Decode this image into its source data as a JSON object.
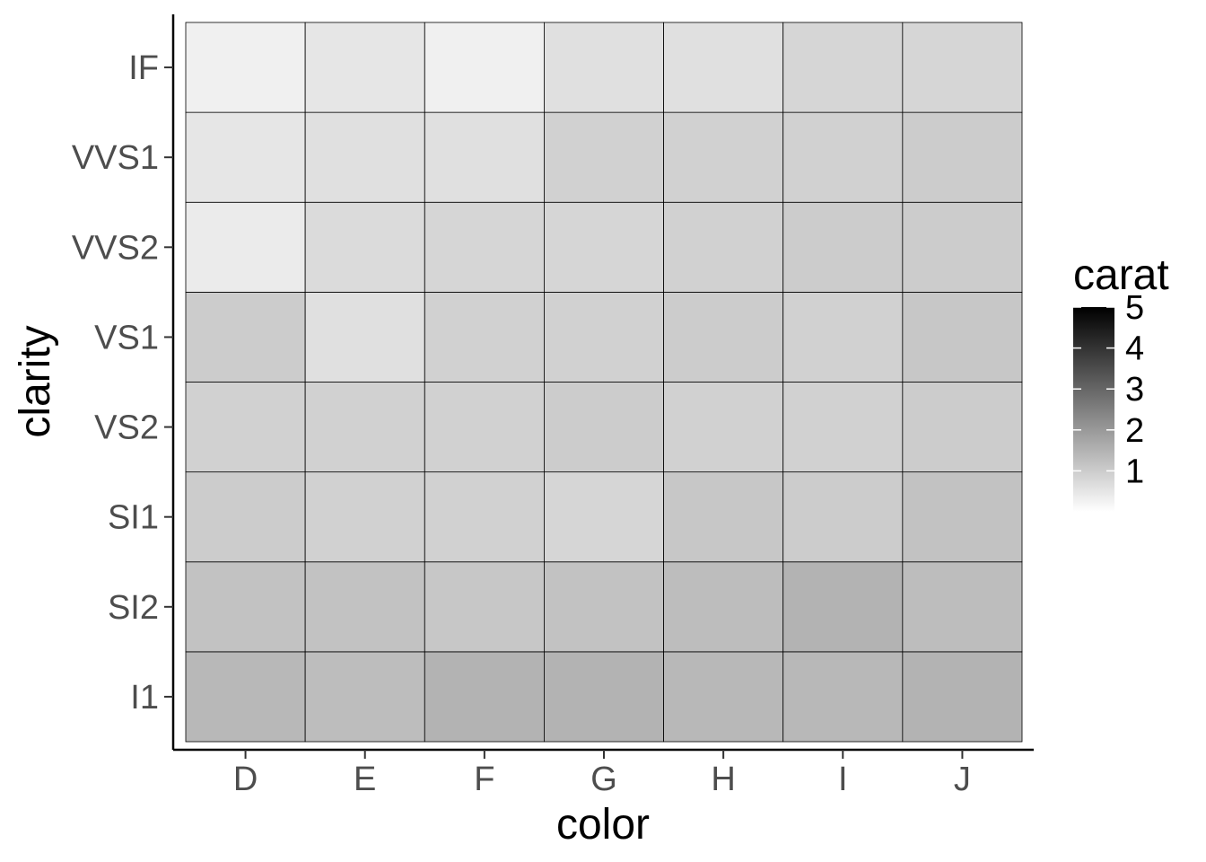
{
  "chart_data": {
    "type": "heatmap",
    "xlabel": "color",
    "ylabel": "clarity",
    "x_categories": [
      "D",
      "E",
      "F",
      "G",
      "H",
      "I",
      "J"
    ],
    "y_categories": [
      "I1",
      "SI2",
      "SI1",
      "VS2",
      "VS1",
      "VVS2",
      "VVS1",
      "IF"
    ],
    "values": [
      [
        1.4,
        1.3,
        1.5,
        1.5,
        1.4,
        1.4,
        1.5
      ],
      [
        1.2,
        1.2,
        1.1,
        1.2,
        1.3,
        1.5,
        1.3
      ],
      [
        1.0,
        0.9,
        0.9,
        0.8,
        1.1,
        1.0,
        1.2
      ],
      [
        0.9,
        0.9,
        0.9,
        1.0,
        0.9,
        0.9,
        1.0
      ],
      [
        1.0,
        0.6,
        0.9,
        0.9,
        1.0,
        0.9,
        1.1
      ],
      [
        0.4,
        0.7,
        0.8,
        0.8,
        0.9,
        1.0,
        1.0
      ],
      [
        0.5,
        0.6,
        0.6,
        0.9,
        0.9,
        0.9,
        1.0
      ],
      [
        0.3,
        0.5,
        0.3,
        0.6,
        0.6,
        0.8,
        0.8
      ]
    ],
    "legend": {
      "title": "carat",
      "breaks": [
        1,
        2,
        3,
        4,
        5
      ],
      "limits": [
        0,
        5
      ],
      "low_color": "#ffffff",
      "high_color": "#000000",
      "placement": "right"
    },
    "grid": false
  }
}
